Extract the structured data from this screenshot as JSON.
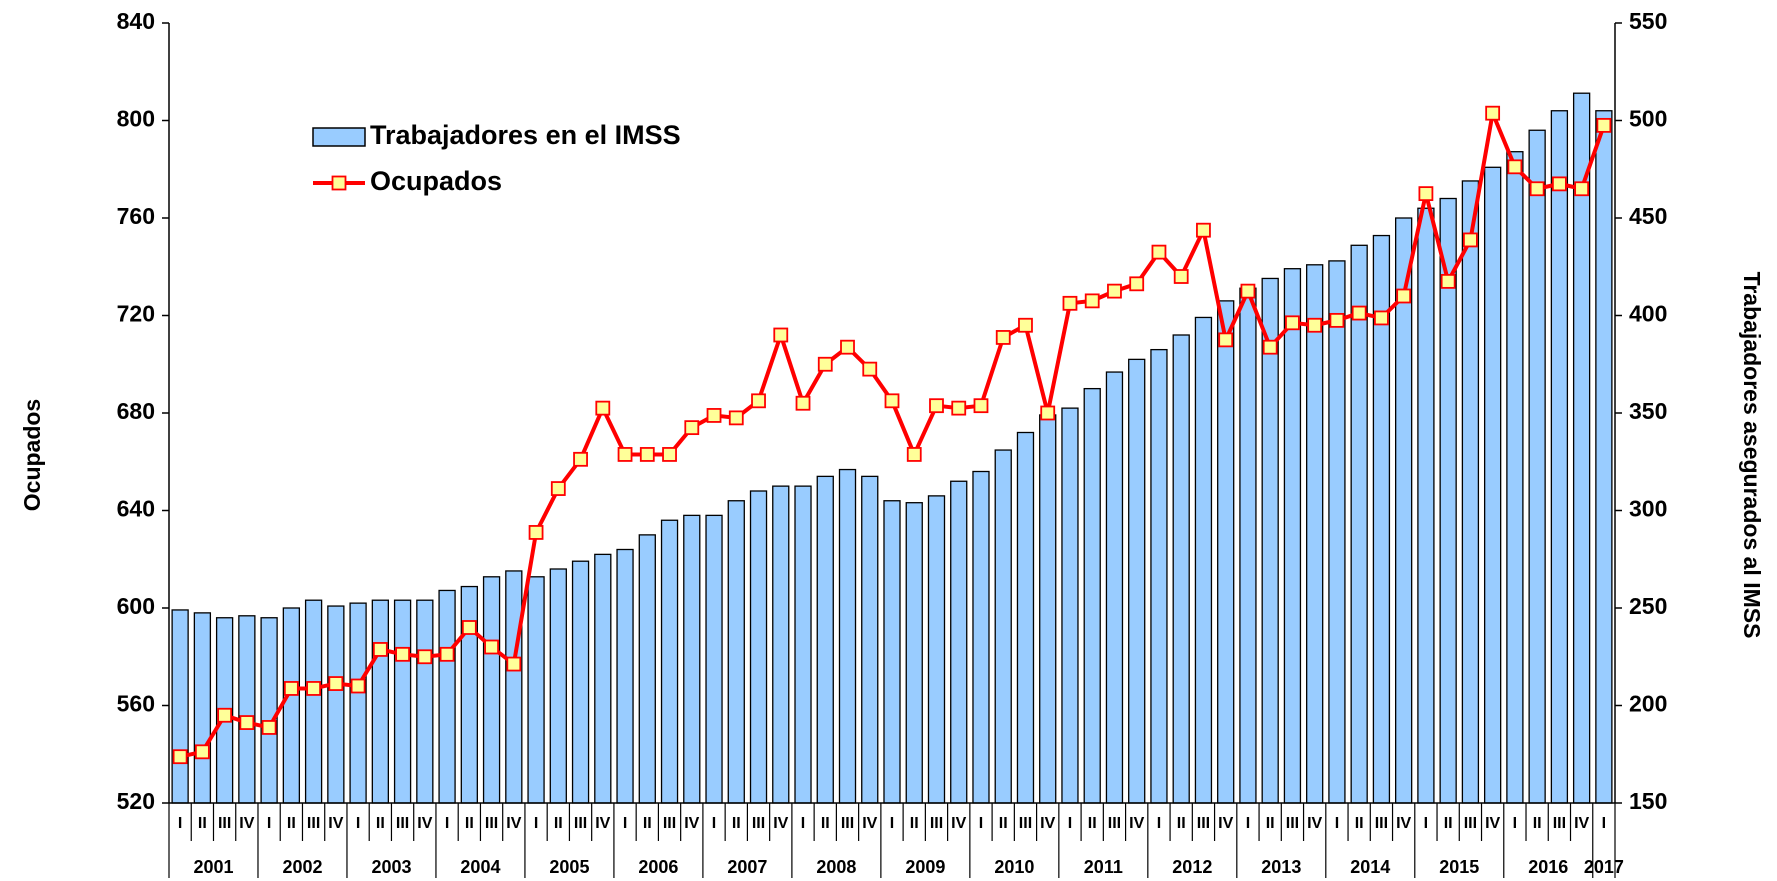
{
  "chart_data": {
    "type": "combo",
    "categories": [
      "I",
      "II",
      "III",
      "IV",
      "I",
      "II",
      "III",
      "IV",
      "I",
      "II",
      "III",
      "IV",
      "I",
      "II",
      "III",
      "IV",
      "I",
      "II",
      "III",
      "IV",
      "I",
      "II",
      "III",
      "IV",
      "I",
      "II",
      "III",
      "IV",
      "I",
      "II",
      "III",
      "IV",
      "I",
      "II",
      "III",
      "IV",
      "I",
      "II",
      "III",
      "IV",
      "I",
      "II",
      "III",
      "IV",
      "I",
      "II",
      "III",
      "IV",
      "I",
      "II",
      "III",
      "IV",
      "I",
      "II",
      "III",
      "IV",
      "I",
      "II",
      "III",
      "IV",
      "I",
      "II",
      "III",
      "IV",
      "I"
    ],
    "years": [
      "2001",
      "2002",
      "2003",
      "2004",
      "2005",
      "2006",
      "2007",
      "2008",
      "2009",
      "2010",
      "2011",
      "2012",
      "2013",
      "2014",
      "2015",
      "2016",
      "2017"
    ],
    "series": [
      {
        "name": "Trabajadores en el IMSS",
        "type": "bar",
        "axis": "y2",
        "color": "#99ccff",
        "values": [
          249,
          247.5,
          245,
          246,
          245,
          250,
          254,
          251,
          252.5,
          254,
          254,
          254,
          259,
          261,
          266,
          269,
          266,
          270,
          274,
          277.5,
          280,
          287.5,
          295,
          297.5,
          297.5,
          305,
          310,
          312.5,
          312.5,
          317.5,
          321,
          317.5,
          305,
          304,
          307.5,
          315,
          320,
          331,
          340,
          349,
          352.5,
          362.5,
          371,
          377.5,
          382.5,
          390,
          399,
          407.5,
          414,
          419,
          424,
          426,
          428,
          436,
          441,
          450,
          455,
          460,
          469,
          476,
          484,
          495,
          505,
          514,
          505
        ]
      },
      {
        "name": "Ocupados",
        "type": "line",
        "color": "#ff0000",
        "marker_color": "#ffff99",
        "values": [
          539,
          541,
          556,
          553,
          551,
          567,
          567,
          569,
          568,
          583,
          581,
          580,
          581,
          592,
          584,
          577,
          631,
          649,
          661,
          682,
          663,
          663,
          663,
          674,
          679,
          678,
          685,
          712,
          684,
          700,
          707,
          698,
          685,
          663,
          683,
          682,
          683,
          711,
          716,
          680,
          725,
          726,
          730,
          733,
          746,
          736,
          755,
          710,
          730,
          707,
          717,
          716,
          718,
          721,
          719,
          728,
          770,
          734,
          751,
          803,
          781,
          772,
          774,
          772,
          798
        ]
      }
    ],
    "ylim": [
      520,
      840
    ],
    "yticks": [
      520,
      560,
      600,
      640,
      680,
      720,
      760,
      800,
      840
    ],
    "y2lim": [
      150,
      550
    ],
    "y2ticks": [
      150,
      200,
      250,
      300,
      350,
      400,
      450,
      500,
      550
    ],
    "ylabel": "Ocupados",
    "y2label": "Trabajadores asegurados al IMSS"
  }
}
